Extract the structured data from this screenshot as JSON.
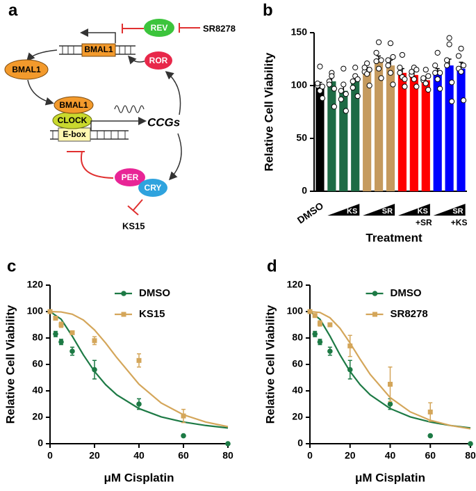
{
  "diagram": {
    "panel_label": "a",
    "gene": "BMAL1",
    "rev": "REV",
    "sr": "SR8278",
    "ror": "ROR",
    "bmal1": "BMAL1",
    "complex_bmal1": "BMAL1",
    "clock": "CLOCK",
    "ebox": "E-box",
    "ccgs": "CCGs",
    "per": "PER",
    "cry": "CRY",
    "ks": "KS15"
  },
  "chart_data": [
    {
      "type": "bar",
      "panel_label": "b",
      "y_label": "Relative Cell Viability",
      "x_label": "Treatment",
      "ylim": [
        0,
        150
      ],
      "yticks": [
        0,
        50,
        100,
        150
      ],
      "groups": [
        {
          "label": "DMSO",
          "color": "#000000",
          "values": [
            100
          ],
          "errors": [
            3
          ],
          "points": [
            [
              100,
              118,
              88,
              102,
              95,
              99
            ]
          ]
        },
        {
          "label": "KS",
          "color": "#1e6b45",
          "values": [
            104,
            95,
            104
          ],
          "errors": [
            4,
            6,
            5
          ],
          "points": [
            [
              104,
              112,
              80,
              101,
              109,
              97
            ],
            [
              95,
              116,
              76,
              87,
              101,
              92
            ],
            [
              104,
              117,
              90,
              98,
              109,
              106
            ]
          ]
        },
        {
          "label": "SR",
          "color": "#c59a5e",
          "values": [
            113,
            123,
            119
          ],
          "errors": [
            4,
            5,
            5
          ],
          "points": [
            [
              113,
              121,
              100,
              117,
              111,
              115
            ],
            [
              123,
              141,
              107,
              131,
              116,
              124
            ],
            [
              119,
              140,
              101,
              124,
              112,
              127
            ]
          ]
        },
        {
          "label": "KS",
          "sublabel": "+SR",
          "color": "#ff0000",
          "values": [
            112,
            110,
            105
          ],
          "errors": [
            4,
            4,
            3
          ],
          "points": [
            [
              112,
              129,
              99,
              117,
              108,
              106
            ],
            [
              110,
              117,
              99,
              113,
              106,
              115
            ],
            [
              105,
              115,
              96,
              107,
              102,
              109
            ]
          ]
        },
        {
          "label": "SR",
          "sublabel": "+KS",
          "color": "#0000ff",
          "values": [
            112,
            119,
            116
          ],
          "errors": [
            4,
            6,
            6
          ],
          "points": [
            [
              112,
              131,
              97,
              119,
              106,
              112
            ],
            [
              119,
              145,
              85,
              124,
              139,
              103
            ],
            [
              116,
              135,
              86,
              128,
              113,
              119
            ]
          ]
        }
      ]
    },
    {
      "type": "scatter",
      "panel_label": "c",
      "y_label": "Relative Cell Viability",
      "x_label": "μM Cisplatin",
      "xlim": [
        0,
        80
      ],
      "xticks": [
        0,
        20,
        40,
        60,
        80
      ],
      "ylim": [
        0,
        120
      ],
      "yticks": [
        0,
        20,
        40,
        60,
        80,
        100,
        120
      ],
      "legend": "upper right",
      "x": [
        0,
        2.5,
        5,
        10,
        20,
        40,
        60,
        80
      ],
      "fit_x": [
        0,
        5,
        10,
        15,
        20,
        25,
        30,
        40,
        50,
        60,
        70,
        80
      ],
      "series": [
        {
          "name": "DMSO",
          "color": "#1d7a45",
          "marker": "circle",
          "values": [
            100,
            83,
            77,
            70,
            56,
            30,
            6,
            0
          ],
          "errors": [
            0,
            2,
            2,
            3,
            7,
            4,
            0,
            0
          ],
          "fit_values": [
            100,
            94.2,
            81.4,
            67.2,
            54.7,
            44.7,
            37.0,
            26.6,
            20.3,
            16.4,
            13.8,
            11.9
          ]
        },
        {
          "name": "KS15",
          "color": "#d4a65a",
          "marker": "square",
          "values": [
            100,
            95,
            90,
            84,
            78,
            63,
            21,
            null
          ],
          "errors": [
            0,
            1,
            2,
            1,
            3,
            5,
            5,
            null
          ],
          "fit_values": [
            100,
            99.7,
            98.0,
            93.6,
            86.1,
            76.2,
            65.2,
            45.0,
            30.8,
            21.9,
            16.4,
            12.9
          ]
        }
      ]
    },
    {
      "type": "scatter",
      "panel_label": "d",
      "y_label": "Relative Cell Viability",
      "x_label": "μM Cisplatin",
      "xlim": [
        0,
        80
      ],
      "xticks": [
        0,
        20,
        40,
        60,
        80
      ],
      "ylim": [
        0,
        120
      ],
      "yticks": [
        0,
        20,
        40,
        60,
        80,
        100,
        120
      ],
      "legend": "upper right",
      "x": [
        0,
        2.5,
        5,
        10,
        20,
        40,
        60,
        80
      ],
      "fit_x": [
        0,
        5,
        10,
        15,
        20,
        25,
        30,
        40,
        50,
        60,
        70,
        80
      ],
      "series": [
        {
          "name": "DMSO",
          "color": "#1d7a45",
          "marker": "circle",
          "values": [
            100,
            83,
            77,
            70,
            56,
            30,
            6,
            0
          ],
          "errors": [
            0,
            2,
            2,
            3,
            7,
            4,
            0,
            0
          ],
          "fit_values": [
            100,
            94.2,
            81.4,
            67.2,
            54.7,
            44.7,
            37.0,
            26.6,
            20.3,
            16.4,
            13.8,
            11.9
          ]
        },
        {
          "name": "SR8278",
          "color": "#d4a65a",
          "marker": "square",
          "values": [
            100,
            97,
            91,
            90,
            74,
            45,
            24,
            null
          ],
          "errors": [
            0,
            1,
            2,
            1,
            8,
            13,
            7,
            null
          ],
          "fit_values": [
            100,
            99.3,
            95.3,
            87.3,
            76.2,
            64.0,
            52.5,
            34.9,
            24.1,
            17.7,
            13.8,
            11.3
          ]
        }
      ]
    }
  ]
}
